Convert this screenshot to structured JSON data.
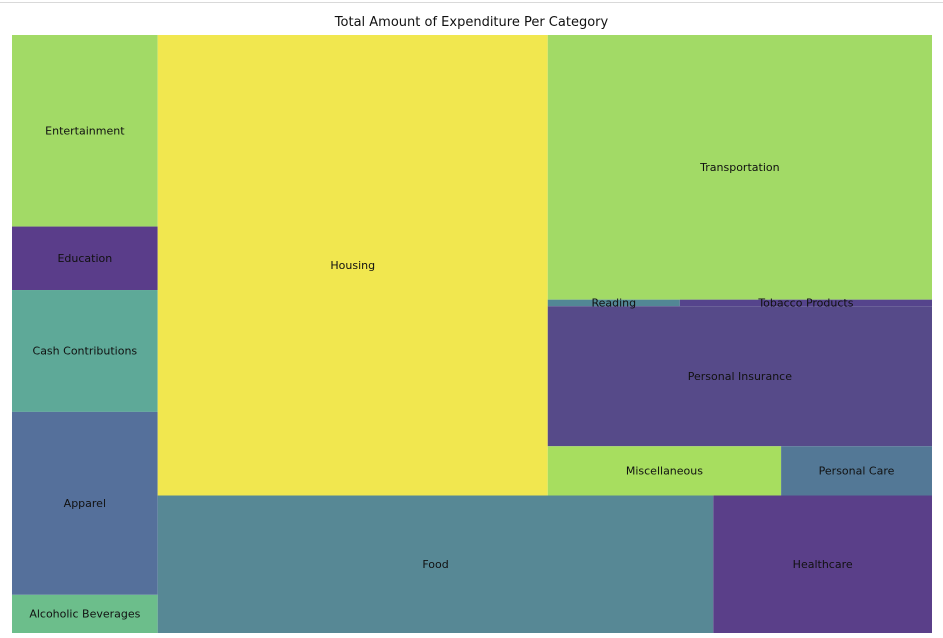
{
  "chart_data": {
    "type": "treemap",
    "title": "Total Amount of Expenditure Per Category",
    "items": [
      {
        "label": "Entertainment",
        "value": 3568,
        "color": "#a2da66"
      },
      {
        "label": "Education",
        "value": 1182,
        "color": "#5a3d8a"
      },
      {
        "label": "Cash Contributions",
        "value": 2270,
        "color": "#5ea998"
      },
      {
        "label": "Apparel",
        "value": 3407,
        "color": "#55709b"
      },
      {
        "label": "Alcoholic Beverages",
        "value": 711,
        "color": "#6cbe8b"
      },
      {
        "label": "Housing",
        "value": 22963,
        "color": "#f1e74f"
      },
      {
        "label": "Transportation",
        "value": 13001,
        "color": "#a2da66"
      },
      {
        "label": "Reading",
        "value": 111,
        "color": "#528795"
      },
      {
        "label": "Tobacco Products",
        "value": 212,
        "color": "#55448c"
      },
      {
        "label": "Personal Insurance",
        "value": 6877,
        "color": "#564a89"
      },
      {
        "label": "Miscellaneous",
        "value": 1469,
        "color": "#a7de5f"
      },
      {
        "label": "Personal Care",
        "value": 950,
        "color": "#537896"
      },
      {
        "label": "Food",
        "value": 9767,
        "color": "#578895"
      },
      {
        "label": "Healthcare",
        "value": 3844,
        "color": "#5a3f89"
      }
    ]
  }
}
